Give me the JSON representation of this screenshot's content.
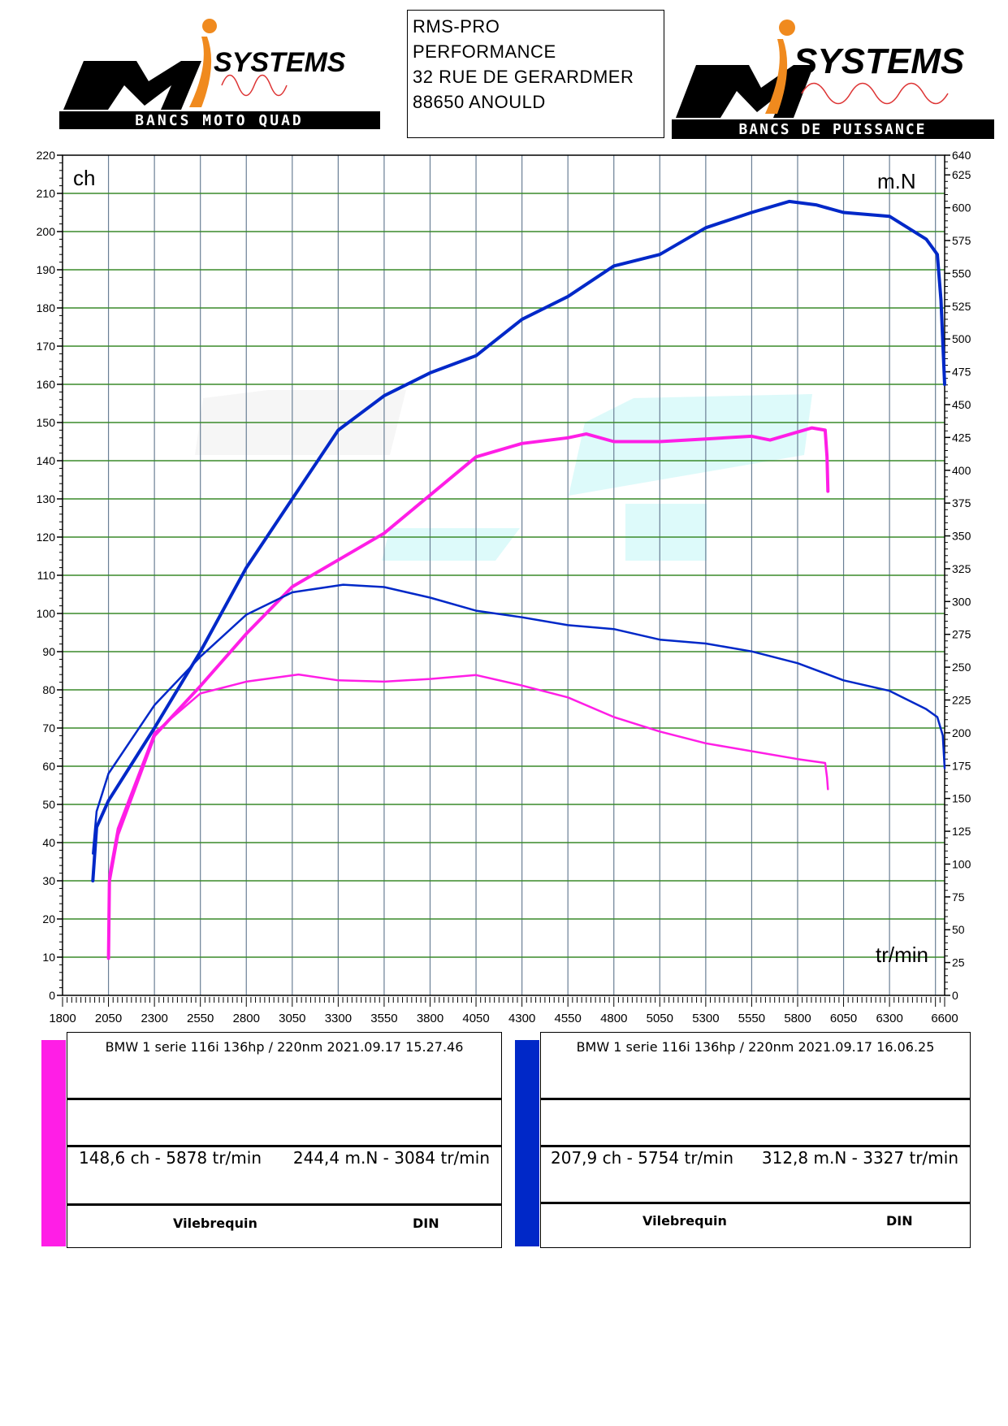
{
  "header": {
    "left_logo": {
      "main": "SYSTEMS",
      "band": "BANCS MOTO QUAD"
    },
    "address": [
      "RMS-PRO",
      "PERFORMANCE",
      "32 RUE DE GERARDMER",
      "88650 ANOULD"
    ],
    "right_logo": {
      "main": "SYSTEMS",
      "band": "BANCS DE PUISSANCE"
    }
  },
  "colors": {
    "run1": "#ff1ee6",
    "run2": "#0028c8",
    "grid_h": "#3a8a2a",
    "grid_v": "#6a7f95"
  },
  "chart_data": {
    "type": "line",
    "xlabel": "tr/min",
    "ylabel_left": "ch",
    "ylabel_right": "m.N",
    "xlim": [
      1800,
      6600
    ],
    "ylim_left": [
      0,
      220
    ],
    "ylim_right": [
      0,
      640
    ],
    "x_ticks": [
      1800,
      2050,
      2300,
      2550,
      2800,
      3050,
      3300,
      3550,
      3800,
      4050,
      4300,
      4550,
      4800,
      5050,
      5300,
      5550,
      5800,
      6050,
      6300,
      6600
    ],
    "y_left_ticks": [
      0,
      10,
      20,
      30,
      40,
      50,
      60,
      70,
      80,
      90,
      100,
      110,
      120,
      130,
      140,
      150,
      160,
      170,
      180,
      190,
      200,
      210,
      220
    ],
    "y_right_ticks": [
      0,
      25,
      50,
      75,
      100,
      125,
      150,
      175,
      200,
      225,
      250,
      275,
      300,
      325,
      350,
      375,
      400,
      425,
      450,
      475,
      500,
      525,
      550,
      575,
      600,
      625,
      640
    ],
    "grid": true,
    "series": [
      {
        "name": "run1-power",
        "unit": "ch",
        "color": "#ff1ee6",
        "x": [
          2050,
          2055,
          2100,
          2300,
          2550,
          2800,
          3050,
          3300,
          3550,
          3800,
          4050,
          4300,
          4550,
          4650,
          4800,
          5050,
          5300,
          5550,
          5650,
          5878,
          5950,
          5960,
          5965
        ],
        "y": [
          9.7,
          30,
          42,
          68,
          81,
          94.7,
          107,
          114,
          121,
          131,
          141,
          144.5,
          146,
          147,
          145,
          145,
          145.7,
          146.4,
          145.4,
          148.6,
          148,
          141,
          132
        ]
      },
      {
        "name": "run1-torque",
        "unit": "m.N",
        "color": "#ff1ee6",
        "x": [
          2050,
          2055,
          2100,
          2300,
          2550,
          2800,
          3084,
          3300,
          3550,
          3800,
          4050,
          4300,
          4550,
          4800,
          5050,
          5300,
          5550,
          5800,
          5950,
          5960,
          5965
        ],
        "y": [
          28,
          92,
          127,
          200,
          230,
          239,
          244.4,
          240,
          239,
          241,
          244,
          236,
          227,
          212,
          201,
          192,
          186,
          180,
          177,
          166,
          157
        ]
      },
      {
        "name": "run2-power",
        "unit": "ch",
        "color": "#0028c8",
        "x": [
          1965,
          1985,
          2050,
          2300,
          2550,
          2800,
          3050,
          3300,
          3550,
          3800,
          4050,
          4300,
          4550,
          4800,
          5050,
          5300,
          5550,
          5754,
          5900,
          6050,
          6300,
          6500,
          6560,
          6580,
          6600
        ],
        "y": [
          30,
          44,
          51,
          70,
          90,
          112,
          130,
          148,
          157,
          163,
          167.5,
          177,
          183,
          191,
          194,
          201,
          205,
          207.9,
          207,
          205,
          204,
          198,
          194,
          182,
          160
        ]
      },
      {
        "name": "run2-torque",
        "unit": "m.N",
        "color": "#0028c8",
        "x": [
          1965,
          1985,
          2050,
          2300,
          2550,
          2800,
          3050,
          3327,
          3550,
          3800,
          4050,
          4300,
          4550,
          4800,
          5050,
          5300,
          5550,
          5800,
          6050,
          6300,
          6500,
          6560,
          6590,
          6600
        ],
        "y": [
          108,
          140,
          169,
          221,
          258,
          290,
          307,
          312.8,
          311,
          303,
          293,
          288,
          282,
          279,
          271,
          268,
          262,
          253,
          240,
          232,
          218,
          212,
          198,
          173
        ]
      }
    ]
  },
  "legend": [
    {
      "title": "BMW 1 serie 116i 136hp / 220nm   2021.09.17 15.27.46",
      "power": "148,6 ch - 5878 tr/min",
      "torque": "244,4 m.N - 3084 tr/min",
      "mode": "Vilebrequin",
      "norm": "DIN"
    },
    {
      "title": "BMW 1 serie 116i 136hp / 220nm   2021.09.17 16.06.25",
      "power": "207,9 ch - 5754 tr/min",
      "torque": "312,8 m.N - 3327 tr/min",
      "mode": "Vilebrequin",
      "norm": "DIN"
    }
  ]
}
